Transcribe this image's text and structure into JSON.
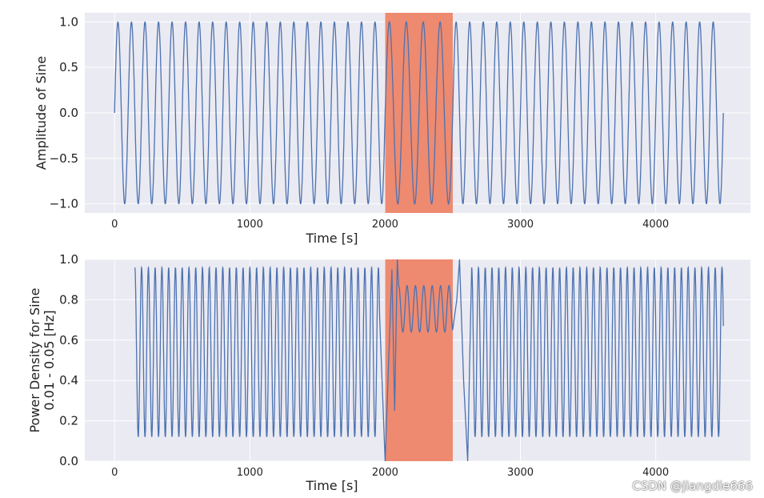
{
  "chart_data": [
    {
      "type": "line",
      "xlabel": "Time [s]",
      "ylabel": "Amplitude of Sine",
      "xlim": [
        -220,
        4700
      ],
      "ylim": [
        -1.1,
        1.1
      ],
      "xticks": [
        0,
        1000,
        2000,
        3000,
        4000
      ],
      "xtick_labels": [
        "0",
        "1000",
        "2000",
        "3000",
        "4000"
      ],
      "yticks": [
        1.0,
        0.5,
        0.0,
        -0.5,
        -1.0
      ],
      "ytick_labels": [
        "1.0",
        "0.5",
        "0.0",
        "−0.5",
        "−1.0"
      ],
      "highlight": {
        "x_start": 2000,
        "x_end": 2500,
        "color": "#ee8a70"
      },
      "series": [
        {
          "name": "sine",
          "x_start": 0,
          "x_end": 4500,
          "segments": [
            {
              "x_from": 0,
              "x_to": 2000,
              "period": 100
            },
            {
              "x_from": 2000,
              "x_to": 2500,
              "period": 125
            },
            {
              "x_from": 2500,
              "x_to": 4500,
              "period": 100
            }
          ],
          "amplitude": 1.0,
          "color": "#4c72b0"
        }
      ],
      "grid": true
    },
    {
      "type": "line",
      "xlabel": "Time [s]",
      "ylabel": "Power Density for Sine",
      "ylabel_line2": "0.01 - 0.05 [Hz]",
      "xlim": [
        -220,
        4700
      ],
      "ylim": [
        0.0,
        1.0
      ],
      "xticks": [
        0,
        1000,
        2000,
        3000,
        4000
      ],
      "xtick_labels": [
        "0",
        "1000",
        "2000",
        "3000",
        "4000"
      ],
      "yticks": [
        1.0,
        0.8,
        0.6,
        0.4,
        0.2,
        0.0
      ],
      "ytick_labels": [
        "1.0",
        "0.8",
        "0.6",
        "0.4",
        "0.2",
        "0.0"
      ],
      "highlight": {
        "x_start": 2000,
        "x_end": 2500,
        "color": "#ee8a70"
      },
      "series": [
        {
          "name": "power_density",
          "x_start": 150,
          "x_end": 4500,
          "segments": [
            {
              "x_from": 150,
              "x_to": 1960,
              "period": 50,
              "min": 0.12,
              "max": 0.96
            },
            {
              "x_from": 2100,
              "x_to": 2500,
              "period": 62,
              "min": 0.64,
              "max": 0.87
            },
            {
              "x_from": 2640,
              "x_to": 4500,
              "period": 50,
              "min": 0.12,
              "max": 0.96
            }
          ],
          "transitions": [
            {
              "x": 2000,
              "y": 0.0
            },
            {
              "x": 2050,
              "y": 0.95
            },
            {
              "x": 2090,
              "y": 1.0
            },
            {
              "x": 2550,
              "y": 1.0
            },
            {
              "x": 2610,
              "y": 0.0
            }
          ],
          "color": "#4c72b0"
        }
      ],
      "grid": true
    }
  ],
  "watermark": "CSDN @jiangdie666"
}
